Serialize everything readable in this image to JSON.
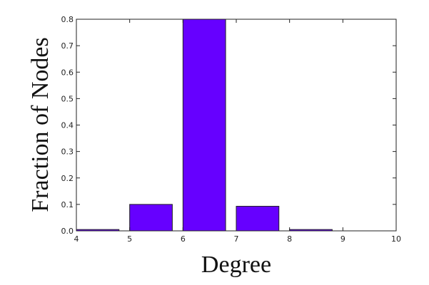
{
  "chart_data": {
    "type": "bar",
    "title": "",
    "xlabel": "Degree",
    "ylabel": "Fraction of Nodes",
    "xlim": [
      4,
      10
    ],
    "ylim": [
      0,
      0.8
    ],
    "x_ticks": [
      "4",
      "5",
      "6",
      "7",
      "8",
      "9",
      "10"
    ],
    "y_ticks": [
      "0.0",
      "0.1",
      "0.2",
      "0.3",
      "0.4",
      "0.5",
      "0.6",
      "0.7",
      "0.8"
    ],
    "bars": [
      {
        "x_start": 4,
        "x_end": 4.8,
        "value": 0.005
      },
      {
        "x_start": 5,
        "x_end": 5.8,
        "value": 0.1
      },
      {
        "x_start": 6,
        "x_end": 6.8,
        "value": 0.8
      },
      {
        "x_start": 7,
        "x_end": 7.8,
        "value": 0.093
      },
      {
        "x_start": 8,
        "x_end": 8.8,
        "value": 0.005
      }
    ],
    "bar_color": "#6600ff",
    "bar_edge_color": "#222222",
    "grid": false,
    "legend": "none"
  }
}
